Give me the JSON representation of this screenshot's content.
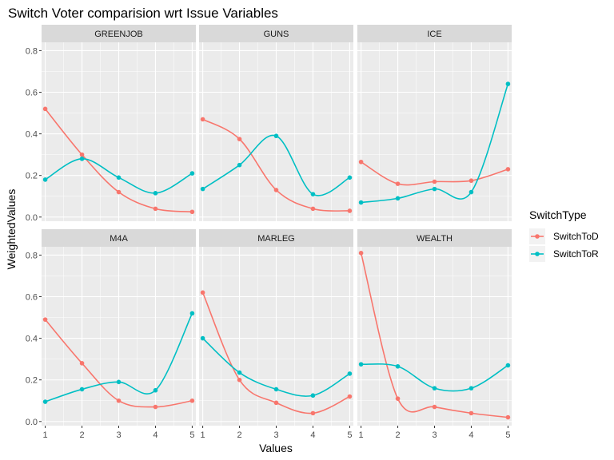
{
  "chart_data": {
    "type": "line",
    "title": "Switch Voter comparision wrt Issue Variables",
    "xlabel": "Values",
    "ylabel": "WeightedValues",
    "x": [
      1,
      2,
      3,
      4,
      5
    ],
    "x_ticks": [
      "1",
      "2",
      "3",
      "4",
      "5"
    ],
    "xlim": [
      0.9,
      5.1
    ],
    "ylim": [
      -0.02,
      0.84
    ],
    "y_ticks": [
      "0.0",
      "0.2",
      "0.4",
      "0.6",
      "0.8"
    ],
    "grid": true,
    "legend": {
      "title": "SwitchType",
      "position": "right"
    },
    "colors": {
      "SwitchToD": "#F8766D",
      "SwitchToR": "#00BFC4",
      "panel_background": "#EBEBEB",
      "strip_background": "#D9D9D9",
      "grid": "#FFFFFF"
    },
    "panels": [
      {
        "label": "GREENJOB",
        "series": [
          {
            "name": "SwitchToD",
            "values": [
              0.52,
              0.3,
              0.12,
              0.04,
              0.025
            ]
          },
          {
            "name": "SwitchToR",
            "values": [
              0.18,
              0.28,
              0.19,
              0.115,
              0.21
            ]
          }
        ]
      },
      {
        "label": "GUNS",
        "series": [
          {
            "name": "SwitchToD",
            "values": [
              0.47,
              0.375,
              0.13,
              0.04,
              0.03
            ]
          },
          {
            "name": "SwitchToR",
            "values": [
              0.135,
              0.25,
              0.39,
              0.11,
              0.19
            ]
          }
        ]
      },
      {
        "label": "ICE",
        "series": [
          {
            "name": "SwitchToD",
            "values": [
              0.265,
              0.16,
              0.17,
              0.175,
              0.23
            ]
          },
          {
            "name": "SwitchToR",
            "values": [
              0.07,
              0.09,
              0.135,
              0.12,
              0.64
            ]
          }
        ]
      },
      {
        "label": "M4A",
        "series": [
          {
            "name": "SwitchToD",
            "values": [
              0.49,
              0.28,
              0.1,
              0.07,
              0.1
            ]
          },
          {
            "name": "SwitchToR",
            "values": [
              0.095,
              0.155,
              0.19,
              0.15,
              0.52
            ]
          }
        ]
      },
      {
        "label": "MARLEG",
        "series": [
          {
            "name": "SwitchToD",
            "values": [
              0.62,
              0.2,
              0.09,
              0.04,
              0.12
            ]
          },
          {
            "name": "SwitchToR",
            "values": [
              0.4,
              0.235,
              0.155,
              0.125,
              0.23
            ]
          }
        ]
      },
      {
        "label": "WEALTH",
        "series": [
          {
            "name": "SwitchToD",
            "values": [
              0.81,
              0.11,
              0.07,
              0.04,
              0.02
            ]
          },
          {
            "name": "SwitchToR",
            "values": [
              0.275,
              0.265,
              0.16,
              0.16,
              0.27
            ]
          }
        ]
      }
    ]
  }
}
